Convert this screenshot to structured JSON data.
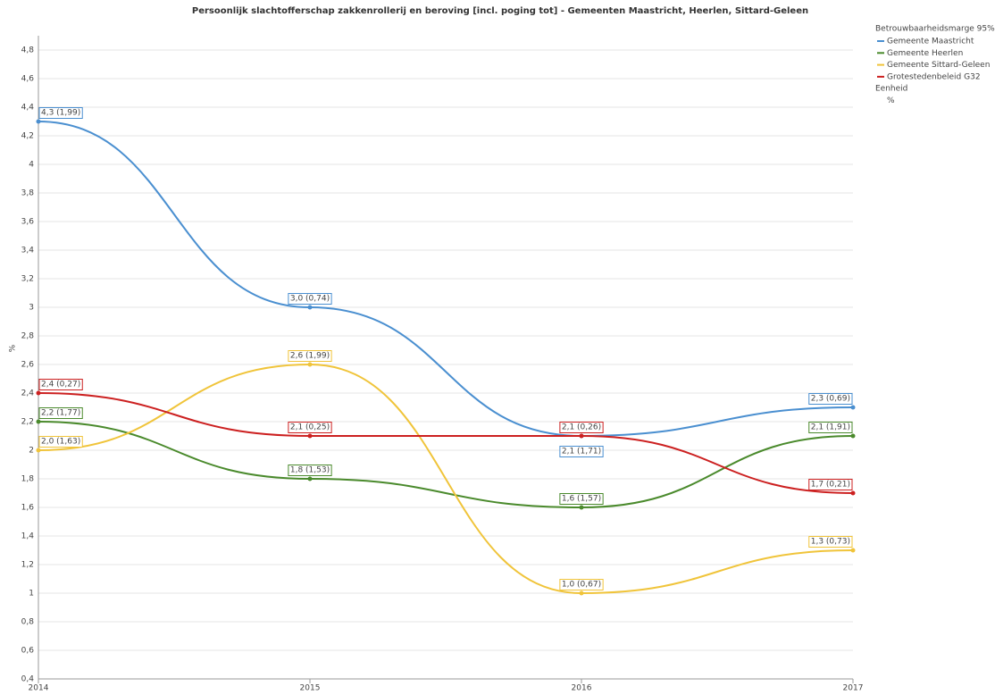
{
  "chart_data": {
    "type": "line",
    "title": "Persoonlijk slachtofferschap zakkenrollerij en beroving [incl. poging tot] - Gemeenten Maastricht, Heerlen, Sittard-Geleen",
    "y_label": "%",
    "legend_title": "Betrouwbaarheidsmarge 95%",
    "unit_title": "Eenheid",
    "unit": "%",
    "x": [
      2014,
      2015,
      2016,
      2017
    ],
    "xlim": [
      2014,
      2017
    ],
    "xticks": [
      2014,
      2015,
      2016,
      2017
    ],
    "ylim": [
      0.4,
      4.9
    ],
    "yticks": [
      {
        "value": 0.4,
        "label": "0,4"
      },
      {
        "value": 0.6,
        "label": "0,6"
      },
      {
        "value": 0.8,
        "label": "0,8"
      },
      1,
      {
        "value": 1.2,
        "label": "1,2"
      },
      {
        "value": 1.4,
        "label": "1,4"
      },
      {
        "value": 1.6,
        "label": "1,6"
      },
      {
        "value": 1.8,
        "label": "1,8"
      },
      2,
      {
        "value": 2.2,
        "label": "2,2"
      },
      {
        "value": 2.4,
        "label": "2,4"
      },
      {
        "value": 2.6,
        "label": "2,6"
      },
      {
        "value": 2.8,
        "label": "2,8"
      },
      3,
      {
        "value": 3.2,
        "label": "3,2"
      },
      {
        "value": 3.4,
        "label": "3,4"
      },
      {
        "value": 3.6,
        "label": "3,6"
      },
      {
        "value": 3.8,
        "label": "3,8"
      },
      4,
      {
        "value": 4.2,
        "label": "4,2"
      },
      {
        "value": 4.4,
        "label": "4,4"
      },
      {
        "value": 4.6,
        "label": "4,6"
      },
      {
        "value": 4.8,
        "label": "4,8"
      }
    ],
    "grid": true,
    "legend": "right",
    "series": [
      {
        "name": "Gemeente Maastricht",
        "color": "#4a8fd0",
        "values": [
          4.3,
          3.0,
          2.1,
          2.3
        ],
        "value_labels": [
          "4,3 (1,99)",
          "3,0 (0,74)",
          "2,1 (1,71)",
          "2,3 (0,69)"
        ]
      },
      {
        "name": "Gemeente Heerlen",
        "color": "#4a8a2c",
        "values": [
          2.2,
          1.8,
          1.6,
          2.1
        ],
        "value_labels": [
          "2,2 (1,77)",
          "1,8 (1,53)",
          "1,6 (1,57)",
          "2,1 (1,91)"
        ]
      },
      {
        "name": "Gemeente Sittard-Geleen",
        "color": "#f0c43a",
        "values": [
          2.0,
          2.6,
          1.0,
          1.3
        ],
        "value_labels": [
          "2,0 (1,63)",
          "2,6 (1,99)",
          "1,0 (0,67)",
          "1,3 (0,73)"
        ]
      },
      {
        "name": "Grotestedenbeleid G32",
        "color": "#cc2020",
        "values": [
          2.4,
          2.1,
          2.1,
          1.7
        ],
        "value_labels": [
          "2,4 (0,27)",
          "2,1 (0,25)",
          "2,1 (0,26)",
          "1,7 (0,21)"
        ]
      }
    ]
  }
}
